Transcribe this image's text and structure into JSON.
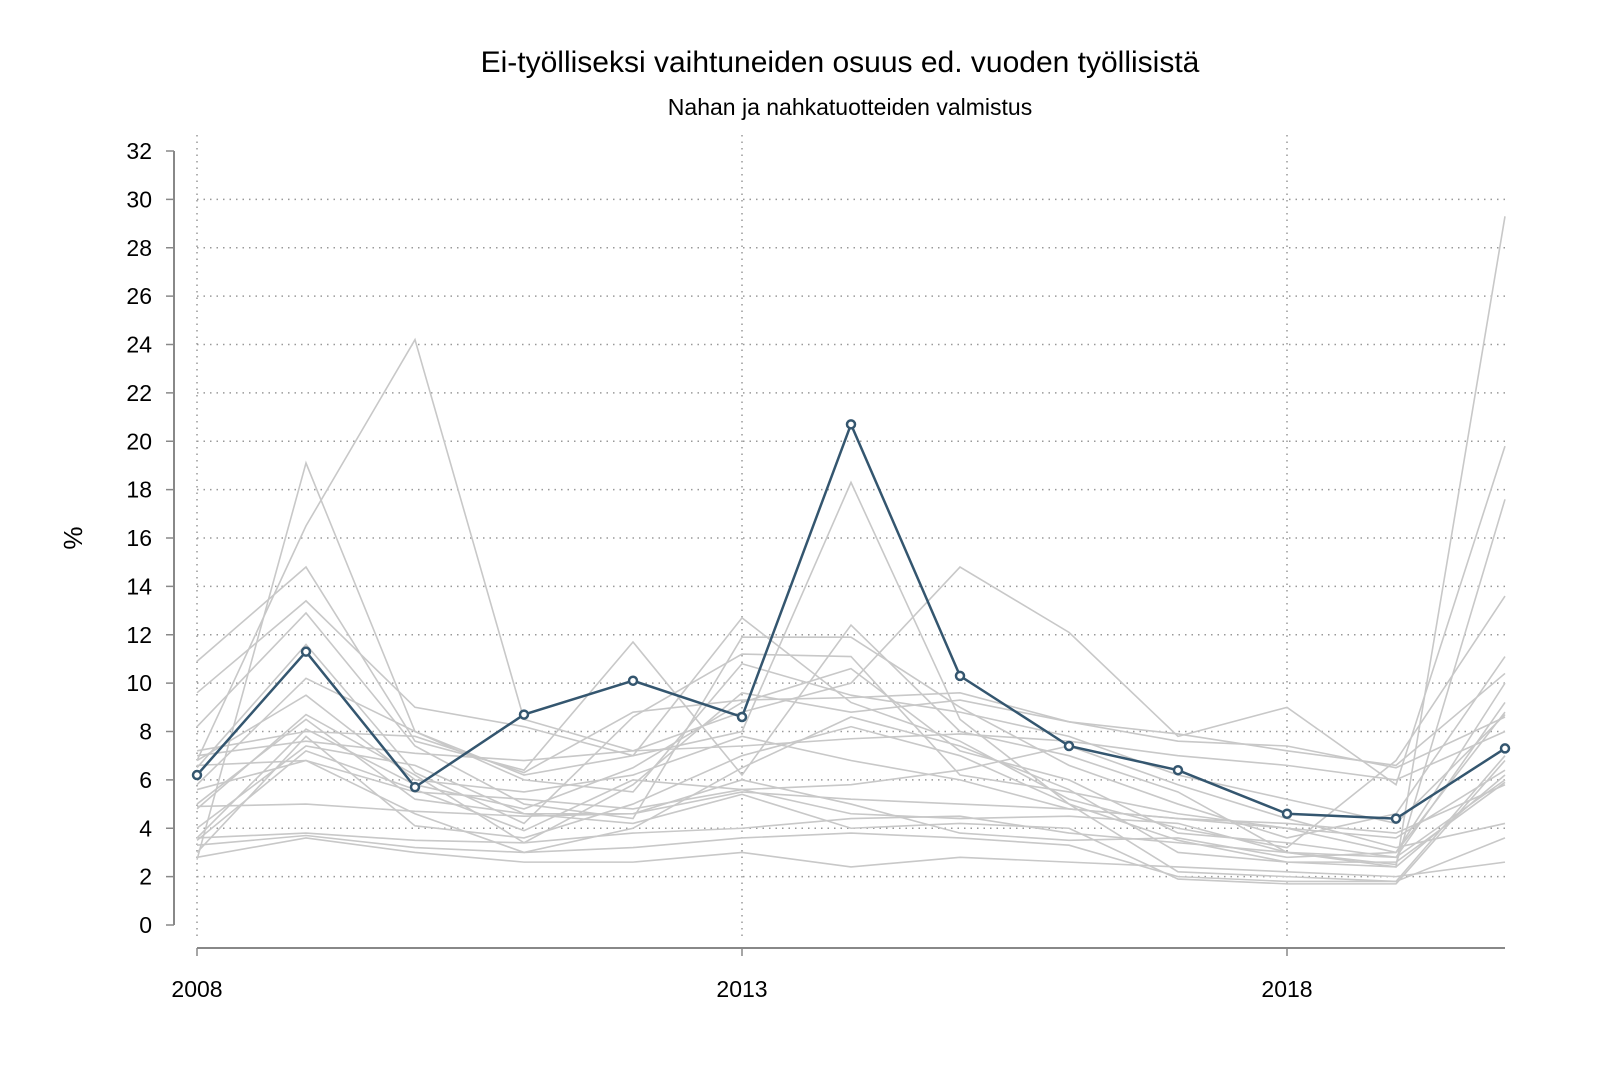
{
  "chart_data": {
    "type": "line",
    "title": "Ei-työlliseksi vaihtuneiden osuus ed. vuoden työllisistä",
    "subtitle": "Nahan ja nahkatuotteiden valmistus",
    "xlabel": "",
    "ylabel": "%",
    "x": [
      2008,
      2009,
      2010,
      2011,
      2012,
      2013,
      2014,
      2015,
      2016,
      2017,
      2018,
      2019,
      2020
    ],
    "xticks": [
      "2008",
      "2013",
      "2018"
    ],
    "xtick_values": [
      2008,
      2013,
      2018
    ],
    "yticks": [
      "0",
      "2",
      "4",
      "6",
      "8",
      "10",
      "12",
      "14",
      "16",
      "18",
      "20",
      "22",
      "24",
      "26",
      "28",
      "30",
      "32"
    ],
    "ylim": [
      0,
      32
    ],
    "xlim": [
      2008,
      2020
    ],
    "grid": true,
    "highlight_color": "#34566f",
    "background_color": "#c8c8c8",
    "series": [
      {
        "name": "Nahan ja nahkatuotteiden valmistus",
        "highlight": true,
        "values": [
          6.2,
          11.3,
          5.7,
          8.7,
          10.1,
          8.6,
          20.7,
          10.3,
          7.4,
          6.4,
          4.6,
          4.4,
          7.3
        ]
      }
    ],
    "background_series": [
      [
        2.7,
        19.1,
        8.0,
        6.2,
        7.0,
        8.0,
        18.3,
        8.5,
        5.0,
        3.5,
        2.6,
        2.4,
        29.3
      ],
      [
        6.8,
        16.5,
        24.2,
        8.5,
        7.2,
        8.8,
        10.0,
        14.8,
        12.1,
        7.8,
        9.0,
        5.8,
        19.8
      ],
      [
        10.9,
        14.8,
        7.6,
        6.4,
        11.7,
        6.2,
        12.4,
        8.0,
        7.0,
        5.5,
        3.0,
        2.5,
        17.6
      ],
      [
        9.6,
        13.4,
        9.0,
        8.2,
        7.0,
        12.7,
        9.2,
        7.6,
        5.2,
        4.0,
        3.2,
        6.8,
        13.6
      ],
      [
        8.2,
        12.9,
        7.4,
        5.0,
        4.4,
        11.9,
        11.9,
        9.0,
        6.6,
        5.0,
        3.6,
        4.6,
        11.1
      ],
      [
        6.5,
        11.6,
        6.3,
        4.2,
        8.6,
        11.2,
        11.1,
        6.2,
        5.5,
        4.6,
        4.0,
        3.0,
        10.0
      ],
      [
        5.8,
        10.2,
        8.0,
        6.0,
        5.5,
        10.8,
        9.5,
        8.8,
        7.8,
        6.2,
        5.2,
        4.2,
        8.7
      ],
      [
        4.8,
        8.7,
        6.2,
        3.4,
        5.8,
        9.6,
        8.8,
        9.3,
        8.4,
        7.6,
        7.4,
        6.5,
        8.6
      ],
      [
        3.6,
        8.1,
        5.8,
        4.8,
        6.5,
        9.2,
        10.6,
        7.2,
        6.0,
        3.8,
        3.4,
        2.8,
        9.2
      ],
      [
        7.0,
        7.6,
        7.1,
        6.8,
        7.2,
        7.4,
        7.7,
        7.9,
        7.6,
        7.0,
        6.6,
        6.0,
        8.0
      ],
      [
        3.0,
        7.8,
        4.1,
        3.6,
        5.0,
        7.0,
        8.2,
        7.0,
        5.0,
        2.2,
        2.0,
        1.8,
        7.0
      ],
      [
        6.8,
        9.5,
        6.0,
        5.5,
        6.2,
        7.8,
        6.8,
        6.0,
        4.8,
        4.4,
        4.0,
        3.6,
        6.4
      ],
      [
        4.9,
        5.0,
        4.7,
        4.5,
        4.6,
        5.5,
        5.2,
        5.0,
        4.8,
        4.4,
        4.2,
        3.8,
        5.8
      ],
      [
        3.6,
        3.8,
        3.5,
        3.4,
        3.8,
        4.0,
        4.4,
        4.5,
        3.8,
        3.4,
        3.0,
        2.8,
        6.0
      ],
      [
        2.8,
        3.6,
        3.0,
        2.6,
        2.6,
        3.0,
        2.4,
        2.8,
        2.6,
        2.4,
        2.2,
        2.0,
        2.6
      ],
      [
        3.3,
        3.7,
        3.2,
        3.0,
        3.2,
        3.6,
        3.8,
        3.6,
        3.3,
        2.0,
        1.8,
        1.8,
        3.6
      ],
      [
        5.0,
        8.5,
        5.2,
        4.6,
        4.2,
        5.4,
        4.0,
        4.2,
        4.0,
        1.9,
        1.7,
        1.7,
        6.8
      ],
      [
        3.5,
        7.2,
        5.6,
        3.9,
        6.0,
        5.6,
        5.8,
        6.4,
        7.4,
        5.8,
        4.4,
        3.2,
        4.2
      ],
      [
        6.6,
        6.8,
        5.5,
        5.2,
        4.8,
        5.6,
        4.6,
        4.4,
        4.5,
        4.2,
        3.0,
        2.4,
        6.2
      ],
      [
        7.2,
        8.0,
        7.8,
        6.3,
        8.8,
        9.3,
        9.4,
        9.6,
        8.4,
        7.9,
        7.2,
        6.6,
        10.4
      ],
      [
        5.6,
        6.8,
        4.6,
        3.0,
        4.0,
        6.5,
        8.6,
        7.4,
        5.6,
        3.0,
        2.6,
        2.6,
        5.9
      ],
      [
        4.0,
        7.4,
        6.6,
        4.6,
        4.6,
        6.0,
        5.0,
        3.8,
        3.5,
        3.6,
        2.8,
        3.0,
        8.8
      ]
    ]
  }
}
